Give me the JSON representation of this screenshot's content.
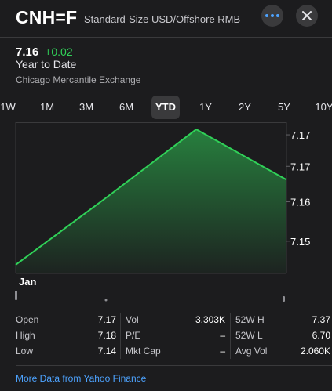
{
  "header": {
    "symbol": "CNH=F",
    "company": "Standard-Size USD/Offshore RMB",
    "more_icon": "more-icon",
    "close_icon": "close-icon"
  },
  "quote": {
    "price": "7.16",
    "change": "+0.02",
    "period": "Year to Date",
    "exchange": "Chicago Mercantile Exchange",
    "change_color": "#30d158"
  },
  "ranges": [
    "1W",
    "1M",
    "3M",
    "6M",
    "YTD",
    "1Y",
    "2Y",
    "5Y",
    "10Y"
  ],
  "active_range": "YTD",
  "chart_data": {
    "type": "area",
    "x_label": "Jan",
    "y_tick_labels": [
      "7.17",
      "7.17",
      "7.16",
      "7.15"
    ],
    "y_ticks": [
      7.172,
      7.168,
      7.1635,
      7.1585
    ],
    "ylim": [
      7.155,
      7.173
    ],
    "points": [
      7.1555,
      7.164,
      7.1727,
      7.1663
    ],
    "line_color": "#30d158",
    "grid": true
  },
  "stats": [
    [
      {
        "label": "Open",
        "value": "7.17"
      },
      {
        "label": "High",
        "value": "7.18"
      },
      {
        "label": "Low",
        "value": "7.14"
      }
    ],
    [
      {
        "label": "Vol",
        "value": "3.303K"
      },
      {
        "label": "P/E",
        "value": "–"
      },
      {
        "label": "Mkt Cap",
        "value": "–"
      }
    ],
    [
      {
        "label": "52W H",
        "value": "7.37"
      },
      {
        "label": "52W L",
        "value": "6.70"
      },
      {
        "label": "Avg Vol",
        "value": "2.060K"
      }
    ]
  ],
  "footer": {
    "link_text": "More Data from Yahoo Finance"
  }
}
